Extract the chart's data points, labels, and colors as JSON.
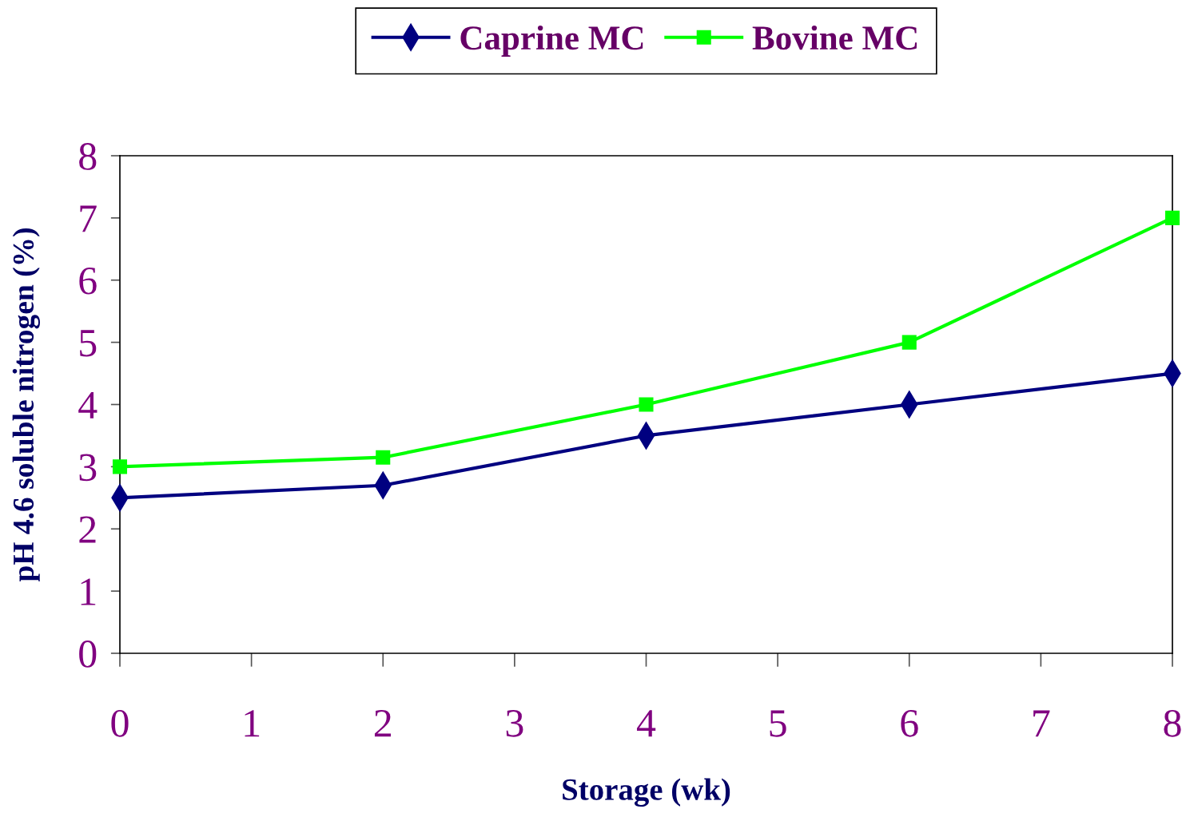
{
  "chart_data": {
    "type": "line",
    "xlabel": "Storage (wk)",
    "ylabel": "pH 4.6 soluble nitrogen (%)",
    "x": [
      0,
      2,
      4,
      6,
      8
    ],
    "series": [
      {
        "name": "Caprine MC",
        "color": "#000080",
        "marker": "diamond",
        "values": [
          2.5,
          2.7,
          3.5,
          4.0,
          4.5
        ]
      },
      {
        "name": "Bovine MC",
        "color": "#00ff00",
        "marker": "square",
        "values": [
          3.0,
          3.15,
          4.0,
          5.0,
          7.0
        ]
      }
    ],
    "xlim": [
      0,
      8
    ],
    "ylim": [
      0,
      8
    ],
    "xticks": [
      0,
      1,
      2,
      3,
      4,
      5,
      6,
      7,
      8
    ],
    "yticks": [
      0,
      1,
      2,
      3,
      4,
      5,
      6,
      7,
      8
    ],
    "legend": "top",
    "line_style": "solid"
  }
}
